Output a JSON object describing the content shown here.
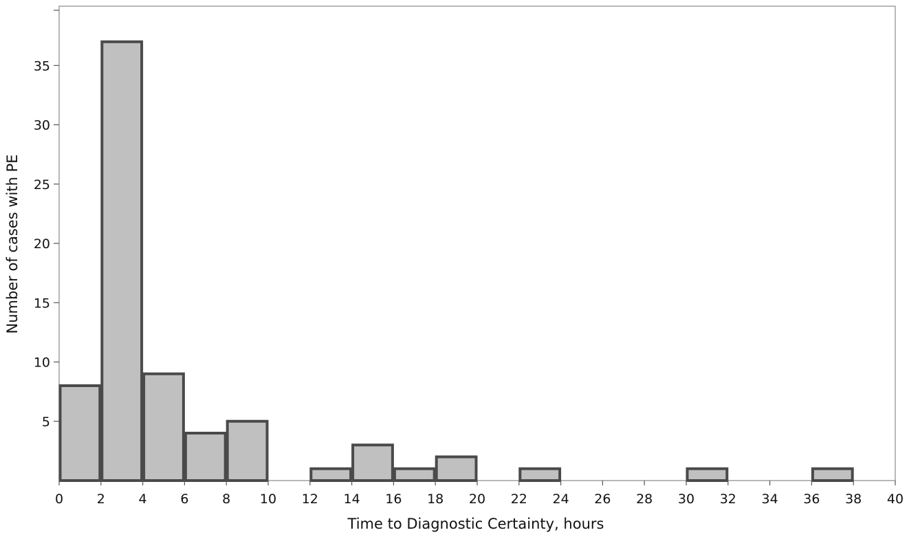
{
  "chart_data": {
    "type": "bar",
    "xlabel": "Time to Diagnostic Certainty, hours",
    "ylabel": "Number of cases with PE",
    "xlim": [
      0,
      40
    ],
    "ylim": [
      0,
      40
    ],
    "x_ticks": [
      "0",
      "2",
      "4",
      "6",
      "8",
      "10",
      "12",
      "14",
      "16",
      "18",
      "20",
      "22",
      "24",
      "26",
      "28",
      "30",
      "32",
      "34",
      "36",
      "38",
      "40"
    ],
    "y_ticks": [
      "5",
      "10",
      "15",
      "20",
      "25",
      "30",
      "35"
    ],
    "bins": [
      {
        "x0": 0,
        "x1": 2,
        "count": 8
      },
      {
        "x0": 2,
        "x1": 4,
        "count": 37
      },
      {
        "x0": 4,
        "x1": 6,
        "count": 9
      },
      {
        "x0": 6,
        "x1": 8,
        "count": 4
      },
      {
        "x0": 8,
        "x1": 10,
        "count": 5
      },
      {
        "x0": 12,
        "x1": 14,
        "count": 1
      },
      {
        "x0": 14,
        "x1": 16,
        "count": 3
      },
      {
        "x0": 16,
        "x1": 18,
        "count": 1
      },
      {
        "x0": 18,
        "x1": 20,
        "count": 2
      },
      {
        "x0": 22,
        "x1": 24,
        "count": 1
      },
      {
        "x0": 30,
        "x1": 32,
        "count": 1
      },
      {
        "x0": 36,
        "x1": 38,
        "count": 1
      }
    ],
    "colors": {
      "bar_fill": "#c0c0c0",
      "bar_stroke": "#4a4a4a",
      "frame": "#a0a0a0"
    },
    "grid": false,
    "legend": "none"
  }
}
